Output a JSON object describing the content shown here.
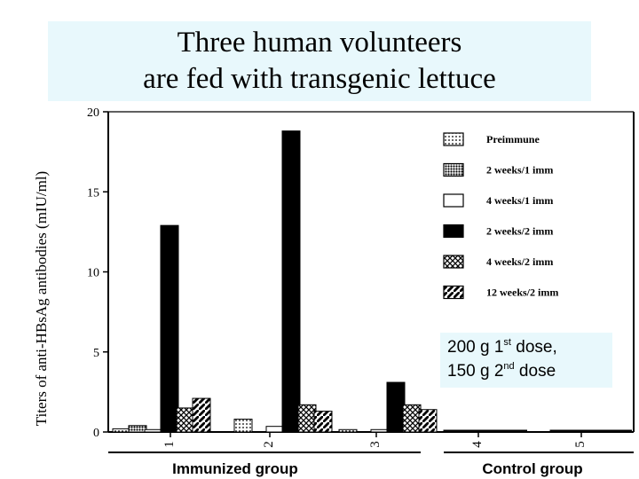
{
  "title": {
    "line1": "Three human volunteers",
    "line2": "are fed with transgenic lettuce"
  },
  "dose_note": {
    "line1_prefix": "200 g 1",
    "line1_sup": "st",
    "line1_suffix": " dose,",
    "line2_prefix": "150 g 2",
    "line2_sup": "nd",
    "line2_suffix": " dose"
  },
  "chart_data": {
    "type": "bar",
    "ylabel": "Titers of anti-HBsAg antibodies (mIU/ml)",
    "ylim": [
      0,
      20
    ],
    "yticks": [
      "0",
      "5",
      "10",
      "15",
      "20"
    ],
    "categories": [
      "1",
      "2",
      "3",
      "4",
      "5"
    ],
    "groups": [
      {
        "label": "Immunized group",
        "categories": [
          "1",
          "2",
          "3"
        ]
      },
      {
        "label": "Control group",
        "categories": [
          "4",
          "5"
        ]
      }
    ],
    "legend_position": "top-right",
    "series": [
      {
        "name": "Preimmune",
        "pattern": "dots",
        "values": [
          0.2,
          0.8,
          0.15,
          0.05,
          0.05
        ]
      },
      {
        "name": "2 weeks/1 imm",
        "pattern": "dense-dots",
        "values": [
          0.4,
          0,
          0,
          0,
          0
        ]
      },
      {
        "name": "4 weeks/1 imm",
        "pattern": "white",
        "values": [
          0.15,
          0.35,
          0.15,
          0,
          0
        ]
      },
      {
        "name": "2 weeks/2 imm",
        "pattern": "black",
        "values": [
          12.9,
          18.8,
          3.1,
          0,
          0
        ]
      },
      {
        "name": "4 weeks/2 imm",
        "pattern": "crosshatch",
        "values": [
          1.5,
          1.7,
          1.7,
          0,
          0
        ]
      },
      {
        "name": "12 weeks/2 imm",
        "pattern": "diagonal",
        "values": [
          2.1,
          1.3,
          1.4,
          0,
          0
        ]
      }
    ],
    "colors": {
      "bar_fill": "#000000",
      "background": "#ffffff",
      "title_box": "#e8f8fc"
    }
  }
}
